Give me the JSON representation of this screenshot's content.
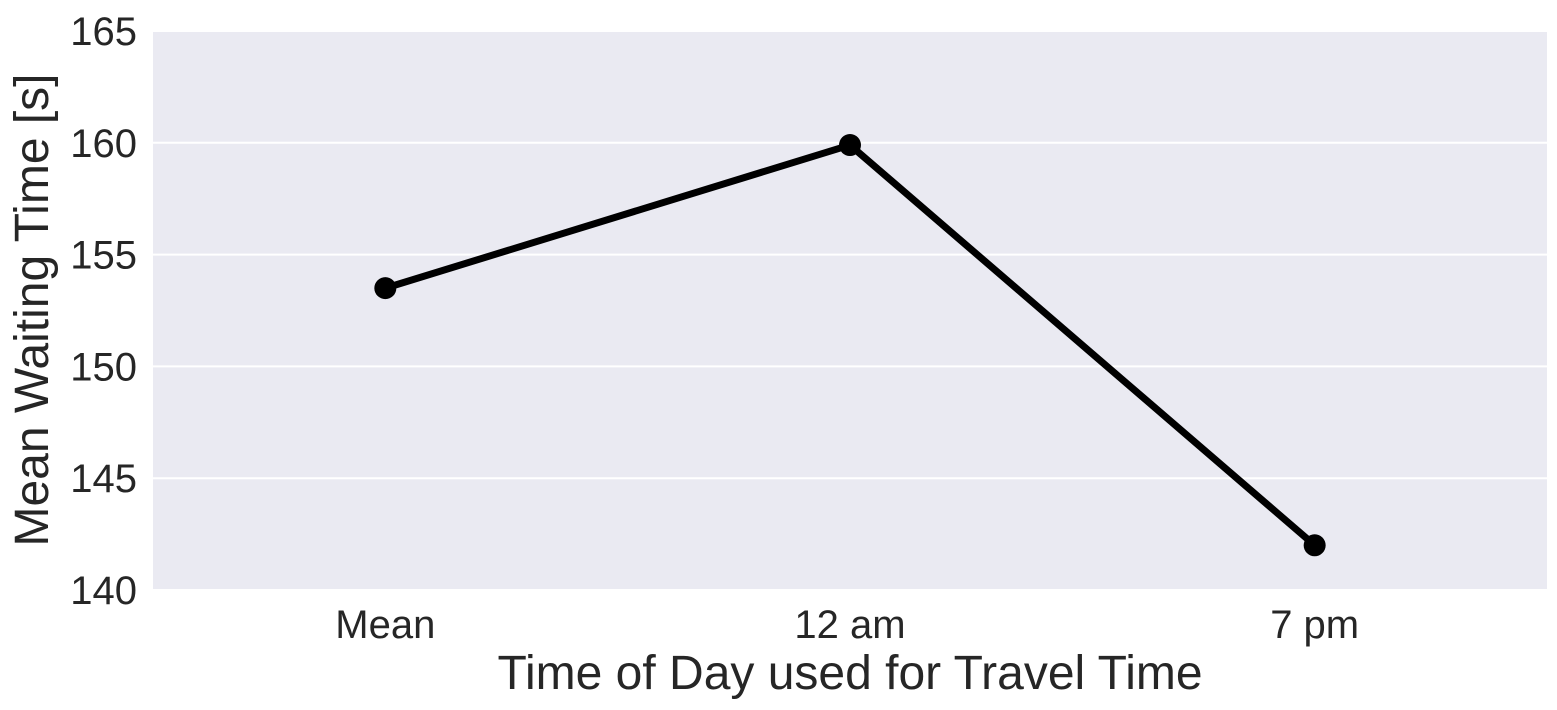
{
  "chart_data": {
    "type": "line",
    "title": "",
    "xlabel": "Time of Day used for Travel Time",
    "ylabel": "Mean Waiting Time [s]",
    "categories": [
      "Mean",
      "12 am",
      "7 pm"
    ],
    "series": [
      {
        "values": [
          153.5,
          159.9,
          142.0
        ]
      }
    ],
    "ylim": [
      140,
      165
    ],
    "yticks": [
      140,
      145,
      150,
      155,
      160,
      165
    ],
    "grid": true,
    "legend": "none",
    "colors": {
      "background": "#eaeaf2",
      "grid": "#ffffff",
      "line": "#000000",
      "text": "#262626"
    }
  }
}
